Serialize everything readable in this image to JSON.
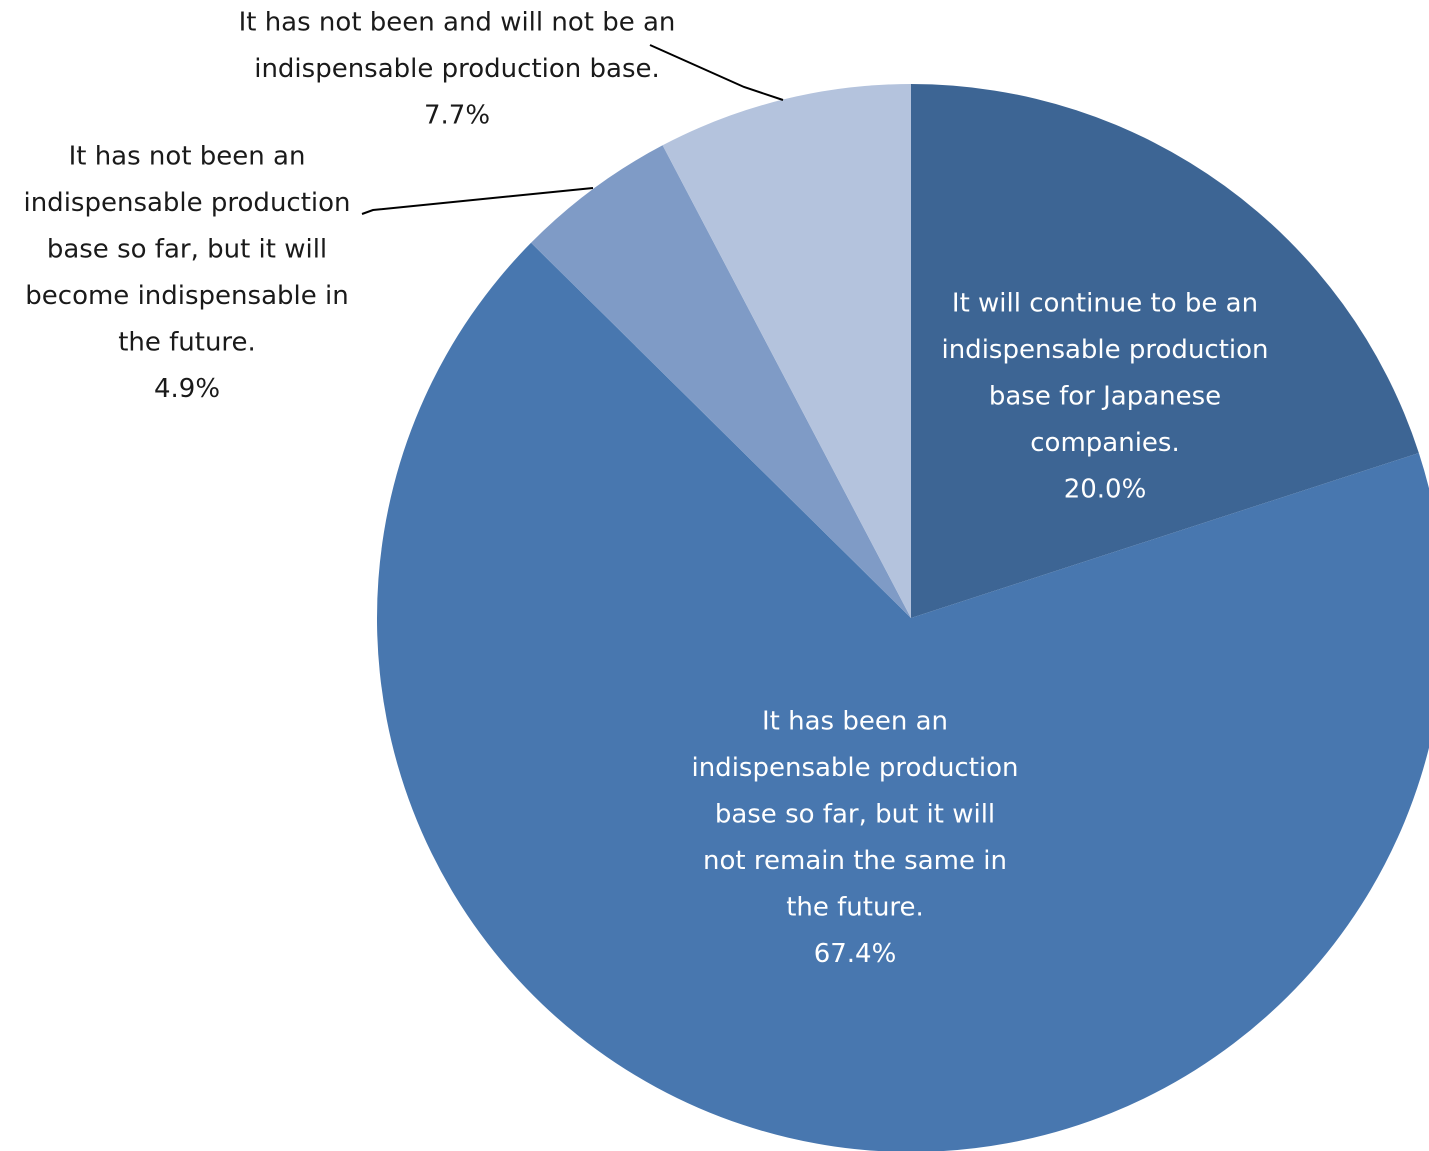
{
  "chart_data": {
    "type": "pie",
    "start_angle_deg": 0,
    "direction": "clockwise",
    "slices": [
      {
        "label_lines": [
          "It will continue to be an",
          "indispensable production",
          "base for Japanese",
          "companies."
        ],
        "value": 20.0,
        "value_label": "20.0%",
        "color": "#3d6594"
      },
      {
        "label_lines": [
          "It has been an",
          "indispensable production",
          "base so far, but it will",
          "not remain the same in",
          "the future."
        ],
        "value": 67.4,
        "value_label": "67.4%",
        "color": "#4877af"
      },
      {
        "label_lines": [
          "It has not been an",
          "indispensable production",
          "base so far, but it will",
          "become indispensable in",
          "the future."
        ],
        "value": 4.9,
        "value_label": "4.9%",
        "color": "#7f9bc6"
      },
      {
        "label_lines": [
          "It has not been and will not be an",
          "indispensable production base."
        ],
        "value": 7.7,
        "value_label": "7.7%",
        "color": "#b4c3dd"
      }
    ]
  }
}
